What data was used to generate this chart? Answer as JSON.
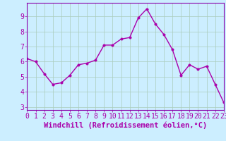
{
  "x": [
    0,
    1,
    2,
    3,
    4,
    5,
    6,
    7,
    8,
    9,
    10,
    11,
    12,
    13,
    14,
    15,
    16,
    17,
    18,
    19,
    20,
    21,
    22,
    23
  ],
  "y": [
    6.2,
    6.0,
    5.2,
    4.5,
    4.6,
    5.1,
    5.8,
    5.9,
    6.1,
    7.1,
    7.1,
    7.5,
    7.6,
    8.9,
    9.5,
    8.5,
    7.8,
    6.8,
    5.1,
    5.8,
    5.5,
    5.7,
    4.5,
    3.3
  ],
  "line_color": "#aa00aa",
  "marker_color": "#aa00aa",
  "bg_color": "#cceeff",
  "grid_color": "#aaccbb",
  "border_color": "#8800aa",
  "xlabel": "Windchill (Refroidissement éolien,°C)",
  "xlabel_color": "#aa00aa",
  "tick_color": "#aa00aa",
  "ylim": [
    2.8,
    9.9
  ],
  "yticks": [
    3,
    4,
    5,
    6,
    7,
    8,
    9
  ],
  "xlim": [
    0,
    23
  ],
  "xticks": [
    0,
    1,
    2,
    3,
    4,
    5,
    6,
    7,
    8,
    9,
    10,
    11,
    12,
    13,
    14,
    15,
    16,
    17,
    18,
    19,
    20,
    21,
    22,
    23
  ],
  "marker_size": 2.5,
  "line_width": 1.0,
  "tick_fontsize": 7,
  "xlabel_fontsize": 7.5
}
